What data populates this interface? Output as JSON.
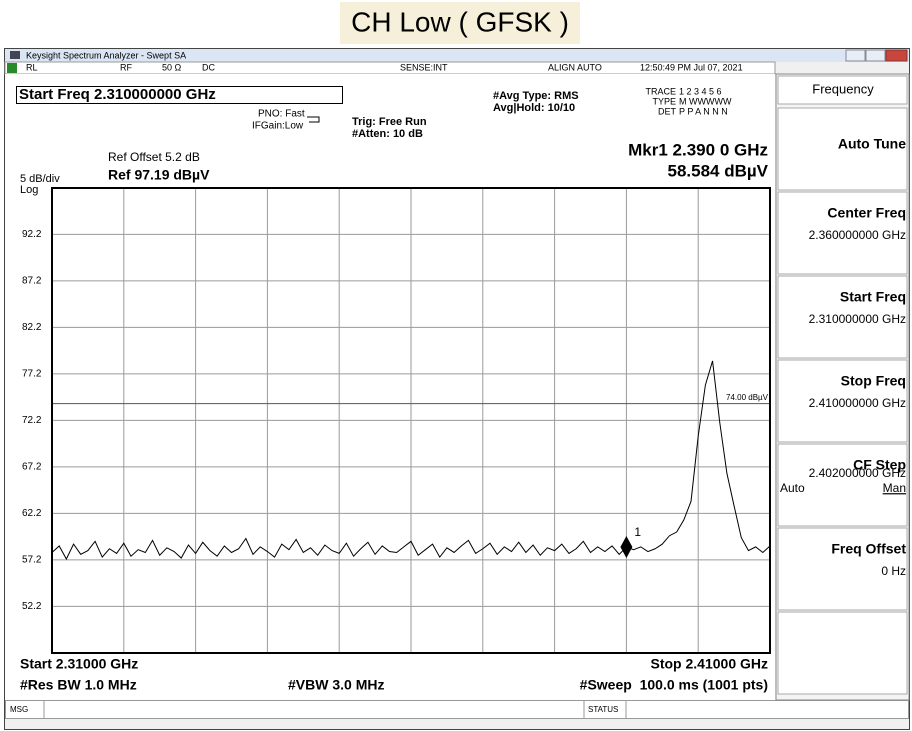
{
  "header": {
    "title": "CH Low ( GFSK )"
  },
  "window": {
    "title": "Keysight Spectrum Analyzer - Swept SA"
  },
  "status_bar": {
    "rl": "RL",
    "rf": "RF",
    "impedance": "50 Ω",
    "coupling": "DC",
    "sense": "SENSE:INT",
    "align": "ALIGN AUTO",
    "datetime": "12:50:49 PM Jul 07, 2021"
  },
  "settings": {
    "active_function": "Start Freq 2.310000000 GHz",
    "pno": "PNO: Fast",
    "ifgain": "IFGain:Low",
    "trig": "Trig: Free Run",
    "atten": "#Atten: 10 dB",
    "avg_type": "#Avg Type: RMS",
    "avg_hold": "Avg|Hold: 10/10",
    "trace": {
      "trace_label": "TRACE",
      "trace_values": "1 2 3 4 5 6",
      "type_label": "TYPE",
      "type_values": "M WWWWW",
      "det_label": "DET",
      "det_values": "P P A N N N"
    }
  },
  "marker_readout": {
    "line1": "Mkr1 2.390 0 GHz",
    "line2": "58.584 dBµV"
  },
  "scale": {
    "ref_offset": "Ref Offset 5.2 dB",
    "ref_level": "Ref 97.19 dBµV",
    "per_div": "5 dB/div",
    "scale_type": "Log"
  },
  "chart_data": {
    "type": "line",
    "color": "#000000",
    "grid": true,
    "xlim": [
      2.31,
      2.41
    ],
    "ylim": [
      47.19,
      97.19
    ],
    "xticks": [
      2.32,
      2.33,
      2.34,
      2.35,
      2.36,
      2.37,
      2.38,
      2.39,
      2.4
    ],
    "yticks": [
      92.2,
      87.2,
      82.2,
      77.2,
      72.2,
      67.2,
      62.2,
      57.2,
      52.2
    ],
    "x": [
      2.31,
      2.311,
      2.312,
      2.313,
      2.314,
      2.315,
      2.316,
      2.317,
      2.318,
      2.319,
      2.32,
      2.321,
      2.322,
      2.323,
      2.324,
      2.325,
      2.326,
      2.327,
      2.328,
      2.329,
      2.33,
      2.331,
      2.332,
      2.333,
      2.334,
      2.335,
      2.336,
      2.337,
      2.338,
      2.339,
      2.34,
      2.341,
      2.342,
      2.343,
      2.344,
      2.345,
      2.346,
      2.347,
      2.348,
      2.349,
      2.35,
      2.351,
      2.352,
      2.353,
      2.354,
      2.355,
      2.356,
      2.357,
      2.358,
      2.359,
      2.36,
      2.361,
      2.362,
      2.363,
      2.364,
      2.365,
      2.366,
      2.367,
      2.368,
      2.369,
      2.37,
      2.371,
      2.372,
      2.373,
      2.374,
      2.375,
      2.376,
      2.377,
      2.378,
      2.379,
      2.38,
      2.381,
      2.382,
      2.383,
      2.384,
      2.385,
      2.386,
      2.387,
      2.388,
      2.389,
      2.39,
      2.391,
      2.392,
      2.393,
      2.394,
      2.395,
      2.396,
      2.397,
      2.398,
      2.399,
      2.4,
      2.401,
      2.402,
      2.403,
      2.404,
      2.405,
      2.406,
      2.407,
      2.408,
      2.409,
      2.41
    ],
    "values": [
      58.0,
      58.7,
      57.3,
      58.9,
      57.8,
      58.2,
      59.2,
      57.5,
      58.4,
      57.9,
      59.0,
      57.6,
      58.3,
      58.0,
      59.3,
      57.7,
      58.5,
      58.1,
      57.4,
      58.8,
      57.9,
      59.1,
      58.2,
      57.6,
      58.7,
      58.0,
      58.4,
      59.5,
      57.8,
      58.6,
      58.1,
      57.5,
      58.9,
      58.3,
      59.4,
      58.0,
      58.5,
      57.7,
      58.8,
      58.2,
      57.9,
      59.0,
      57.6,
      58.4,
      59.1,
      57.8,
      58.7,
      58.1,
      58.0,
      58.6,
      59.2,
      57.7,
      58.3,
      58.9,
      57.5,
      58.5,
      58.0,
      58.7,
      59.3,
      57.9,
      58.4,
      59.0,
      57.8,
      58.6,
      58.1,
      59.1,
      58.0,
      58.8,
      57.7,
      58.5,
      58.2,
      58.9,
      57.9,
      58.4,
      59.2,
      58.0,
      58.6,
      58.1,
      58.7,
      57.8,
      58.584,
      58.3,
      58.6,
      58.1,
      58.4,
      58.9,
      59.8,
      60.2,
      61.5,
      63.5,
      70.5,
      76.0,
      78.6,
      72.0,
      66.5,
      63.0,
      59.6,
      58.2,
      58.6,
      58.0,
      58.7
    ],
    "display_line": {
      "value": 74,
      "label": "74.00 dBµV"
    },
    "marker": {
      "label": "1",
      "x": 2.39,
      "value": 58.584
    }
  },
  "footer": {
    "start": "Start 2.31000 GHz",
    "stop": "Stop 2.41000 GHz",
    "rbw": "#Res BW 1.0 MHz",
    "vbw": "#VBW 3.0 MHz",
    "sweep": "#Sweep  100.0 ms (1001 pts)"
  },
  "message_bar": {
    "msg": "MSG",
    "status": "STATUS"
  },
  "softkeys": {
    "menu": "Frequency",
    "keys": [
      {
        "label": "Auto Tune"
      },
      {
        "label": "Center Freq",
        "value": "2.360000000 GHz"
      },
      {
        "label": "Start Freq",
        "value": "2.310000000 GHz"
      },
      {
        "label": "Stop Freq",
        "value": "2.410000000 GHz"
      },
      {
        "label": "CF Step",
        "value": "2.402000000 GHz",
        "options": [
          "Auto",
          "Man"
        ]
      },
      {
        "label": "Freq Offset",
        "value": "0 Hz"
      }
    ]
  }
}
